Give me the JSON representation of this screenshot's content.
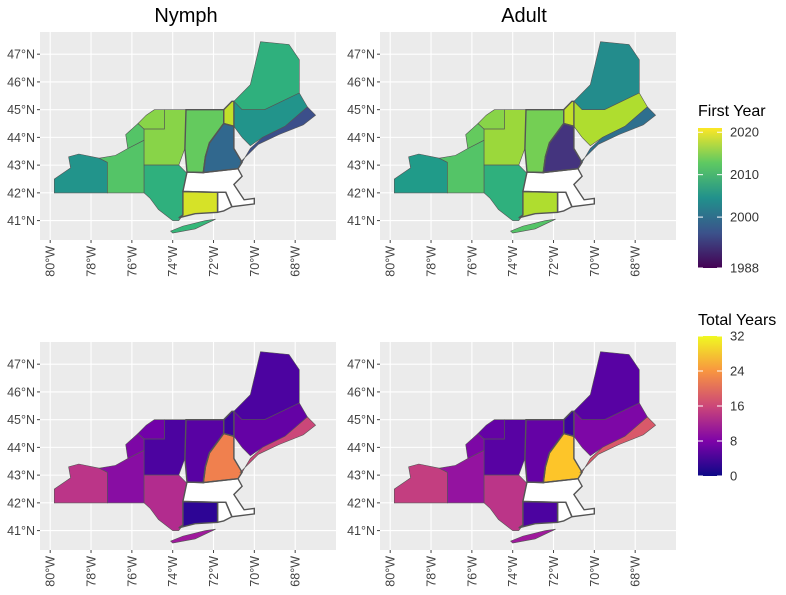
{
  "titles": {
    "nymph": "Nymph",
    "adult": "Adult"
  },
  "axes": {
    "lat_labels": [
      "47°N",
      "46°N",
      "45°N",
      "44°N",
      "43°N",
      "42°N",
      "41°N"
    ],
    "lat_values": [
      47,
      46,
      45,
      44,
      43,
      42,
      41
    ],
    "lon_labels": [
      "80°W",
      "78°W",
      "76°W",
      "74°W",
      "72°W",
      "70°W",
      "68°W"
    ],
    "lon_values": [
      -80,
      -78,
      -76,
      -74,
      -72,
      -70,
      -68
    ]
  },
  "legends": {
    "first_year": {
      "title": "First Year",
      "labels": [
        "2020",
        "2010",
        "2000",
        "1988"
      ],
      "values": [
        2020,
        2010,
        2000,
        1988
      ],
      "range": [
        1988,
        2021
      ],
      "palette": "viridis"
    },
    "total_years": {
      "title": "Total Years",
      "labels": [
        "32",
        "24",
        "16",
        "8",
        "0"
      ],
      "values": [
        32,
        24,
        16,
        8,
        0
      ],
      "range": [
        0,
        32
      ],
      "palette": "plasma"
    }
  },
  "panels": [
    {
      "id": "nymph-first-year",
      "row": 0,
      "col": 0,
      "variable": "first_year",
      "title_key": "nymph",
      "regions": [
        {
          "name": "western-ny",
          "value": 2005
        },
        {
          "name": "central-ny",
          "value": 2012
        },
        {
          "name": "northern-ny",
          "value": 2012
        },
        {
          "name": "north-country-ny",
          "value": 2015
        },
        {
          "name": "adirondack-ny",
          "value": 2015
        },
        {
          "name": "hudson-valley-ny",
          "value": 2009
        },
        {
          "name": "long-island-ny",
          "value": 2010
        },
        {
          "name": "vermont",
          "value": 2013
        },
        {
          "name": "new-hampshire-north",
          "value": 2018
        },
        {
          "name": "new-hampshire-south",
          "value": 1999
        },
        {
          "name": "maine-north",
          "value": 2009
        },
        {
          "name": "maine-central",
          "value": 2005
        },
        {
          "name": "maine-coast",
          "value": 1996
        },
        {
          "name": "massachusetts",
          "value": null
        },
        {
          "name": "connecticut",
          "value": 2019
        },
        {
          "name": "rhode-island",
          "value": null
        }
      ]
    },
    {
      "id": "adult-first-year",
      "row": 0,
      "col": 1,
      "variable": "first_year",
      "title_key": "adult",
      "regions": [
        {
          "name": "western-ny",
          "value": 2006
        },
        {
          "name": "central-ny",
          "value": 2012
        },
        {
          "name": "northern-ny",
          "value": 2013
        },
        {
          "name": "north-country-ny",
          "value": 2015
        },
        {
          "name": "adirondack-ny",
          "value": 2016
        },
        {
          "name": "hudson-valley-ny",
          "value": 2009
        },
        {
          "name": "long-island-ny",
          "value": 2012
        },
        {
          "name": "vermont",
          "value": 2014
        },
        {
          "name": "new-hampshire-north",
          "value": 2018
        },
        {
          "name": "new-hampshire-south",
          "value": 1993
        },
        {
          "name": "maine-north",
          "value": 2004
        },
        {
          "name": "maine-central",
          "value": 2017
        },
        {
          "name": "maine-coast",
          "value": 2000
        },
        {
          "name": "massachusetts",
          "value": null
        },
        {
          "name": "connecticut",
          "value": 2017
        },
        {
          "name": "rhode-island",
          "value": null
        }
      ]
    },
    {
      "id": "nymph-total-years",
      "row": 1,
      "col": 0,
      "variable": "total_years",
      "regions": [
        {
          "name": "western-ny",
          "value": 14
        },
        {
          "name": "central-ny",
          "value": 9
        },
        {
          "name": "northern-ny",
          "value": 8
        },
        {
          "name": "north-country-ny",
          "value": 7
        },
        {
          "name": "adirondack-ny",
          "value": 4
        },
        {
          "name": "hudson-valley-ny",
          "value": 13
        },
        {
          "name": "long-island-ny",
          "value": 11
        },
        {
          "name": "vermont",
          "value": 5
        },
        {
          "name": "new-hampshire-north",
          "value": 3
        },
        {
          "name": "new-hampshire-south",
          "value": 22
        },
        {
          "name": "maine-north",
          "value": 4
        },
        {
          "name": "maine-central",
          "value": 6
        },
        {
          "name": "maine-coast",
          "value": 16
        },
        {
          "name": "massachusetts",
          "value": null
        },
        {
          "name": "connecticut",
          "value": 2
        },
        {
          "name": "rhode-island",
          "value": null
        }
      ]
    },
    {
      "id": "adult-total-years",
      "row": 1,
      "col": 1,
      "variable": "total_years",
      "regions": [
        {
          "name": "western-ny",
          "value": 15
        },
        {
          "name": "central-ny",
          "value": 10
        },
        {
          "name": "northern-ny",
          "value": 8
        },
        {
          "name": "north-country-ny",
          "value": 6
        },
        {
          "name": "adirondack-ny",
          "value": 5
        },
        {
          "name": "hudson-valley-ny",
          "value": 14
        },
        {
          "name": "long-island-ny",
          "value": 11
        },
        {
          "name": "vermont",
          "value": 6
        },
        {
          "name": "new-hampshire-north",
          "value": 3
        },
        {
          "name": "new-hampshire-south",
          "value": 28
        },
        {
          "name": "maine-north",
          "value": 5
        },
        {
          "name": "maine-central",
          "value": 8
        },
        {
          "name": "maine-coast",
          "value": 18
        },
        {
          "name": "massachusetts",
          "value": null
        },
        {
          "name": "connecticut",
          "value": 4
        },
        {
          "name": "rhode-island",
          "value": null
        }
      ]
    }
  ]
}
